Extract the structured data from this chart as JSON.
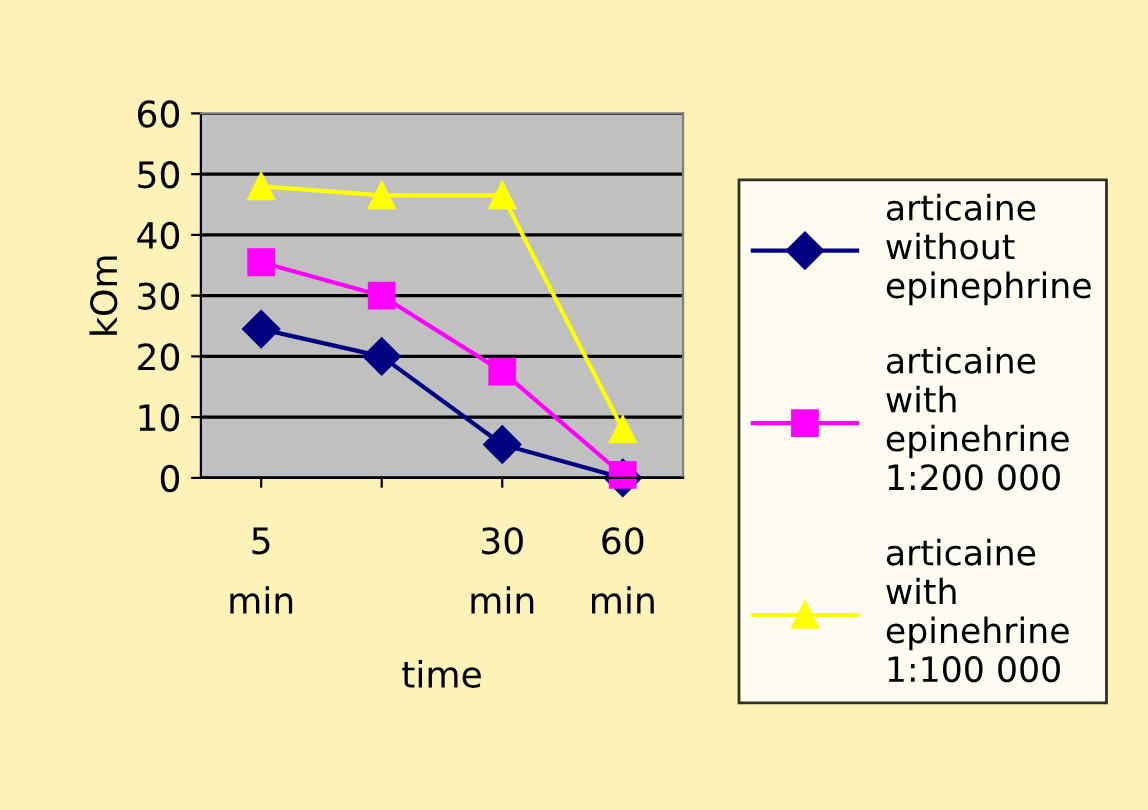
{
  "chart_data": {
    "type": "line",
    "xlabel": "time",
    "ylabel": "kOm",
    "categories": [
      "5\nmin",
      null,
      "30\nmin",
      "60\nmin"
    ],
    "series": [
      {
        "name": "articaine\nwithout\nepinephrine",
        "color": "#000080",
        "values": [
          24.5,
          20,
          5.5,
          0
        ],
        "marker": "diamond"
      },
      {
        "name": "articaine\nwith\nepinehrine\n1:200 000",
        "color": "#ff00ff",
        "values": [
          35.5,
          30,
          17.5,
          0.5
        ],
        "marker": "square"
      },
      {
        "name": "articaine\nwith\nepinehrine\n1:100 000",
        "color": "#ffff00",
        "values": [
          48,
          46.5,
          46.5,
          8
        ],
        "marker": "triangle"
      }
    ],
    "ylim": [
      0,
      60
    ],
    "yticks": [
      0,
      10,
      20,
      30,
      40,
      50,
      60
    ],
    "grid": "y",
    "legend": "right"
  }
}
